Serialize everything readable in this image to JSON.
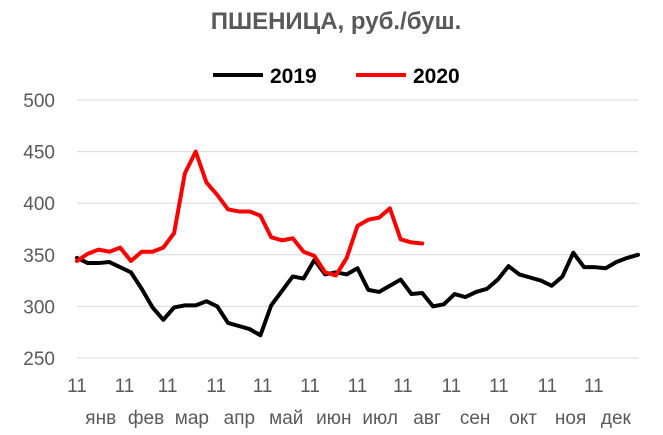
{
  "chart_data": {
    "type": "line",
    "title": "ПШЕНИЦА, руб./буш.",
    "legend_position": "top-center",
    "grid": true,
    "ylim": [
      250,
      500
    ],
    "yticks": [
      "250",
      "300",
      "350",
      "400",
      "450",
      "500"
    ],
    "xlim": [
      0,
      52
    ],
    "x_tick_day_labels": [
      "11",
      "11",
      "11",
      "11",
      "11",
      "11",
      "11",
      "11",
      "11",
      "11",
      "11",
      "11"
    ],
    "x_tick_month_labels": [
      "янв",
      "фев",
      "мар",
      "апр",
      "май",
      "июн",
      "июл",
      "авг",
      "сен",
      "окт",
      "ноя",
      "дек"
    ],
    "series": [
      {
        "name": "2019",
        "color": "#000000",
        "x": [
          0,
          1,
          2,
          3,
          4,
          5,
          6,
          7,
          8,
          9,
          10,
          11,
          12,
          13,
          14,
          15,
          16,
          17,
          18,
          19,
          20,
          21,
          22,
          23,
          24,
          25,
          26,
          27,
          28,
          29,
          30,
          31,
          32,
          33,
          34,
          35,
          36,
          37,
          38,
          39,
          40,
          41,
          42,
          43,
          44,
          45,
          46,
          47,
          48,
          49,
          50,
          51,
          52
        ],
        "values": [
          347,
          342,
          342,
          343,
          338,
          333,
          317,
          299,
          287,
          299,
          301,
          301,
          305,
          300,
          284,
          281,
          278,
          272,
          301,
          315,
          329,
          327,
          345,
          331,
          333,
          331,
          337,
          316,
          314,
          320,
          326,
          312,
          313,
          300,
          302,
          312,
          309,
          314,
          317,
          326,
          339,
          331,
          328,
          325,
          320,
          329,
          352,
          338,
          338,
          337,
          343,
          347,
          350
        ]
      },
      {
        "name": "2020",
        "color": "#ff0000",
        "x": [
          0,
          1,
          2,
          3,
          4,
          5,
          6,
          7,
          8,
          9,
          10,
          11,
          12,
          13,
          14,
          15,
          16,
          17,
          18,
          19,
          20,
          21,
          22,
          23,
          24,
          25,
          26,
          27,
          28,
          29,
          30,
          31,
          32
        ],
        "values": [
          344,
          351,
          355,
          353,
          357,
          344,
          353,
          353,
          357,
          371,
          429,
          450,
          420,
          408,
          394,
          392,
          392,
          388,
          367,
          364,
          366,
          353,
          349,
          333,
          330,
          347,
          378,
          384,
          386,
          395,
          365,
          362,
          361
        ]
      }
    ]
  },
  "colors": {
    "grid": "#d9d9d9",
    "text": "#595959"
  }
}
